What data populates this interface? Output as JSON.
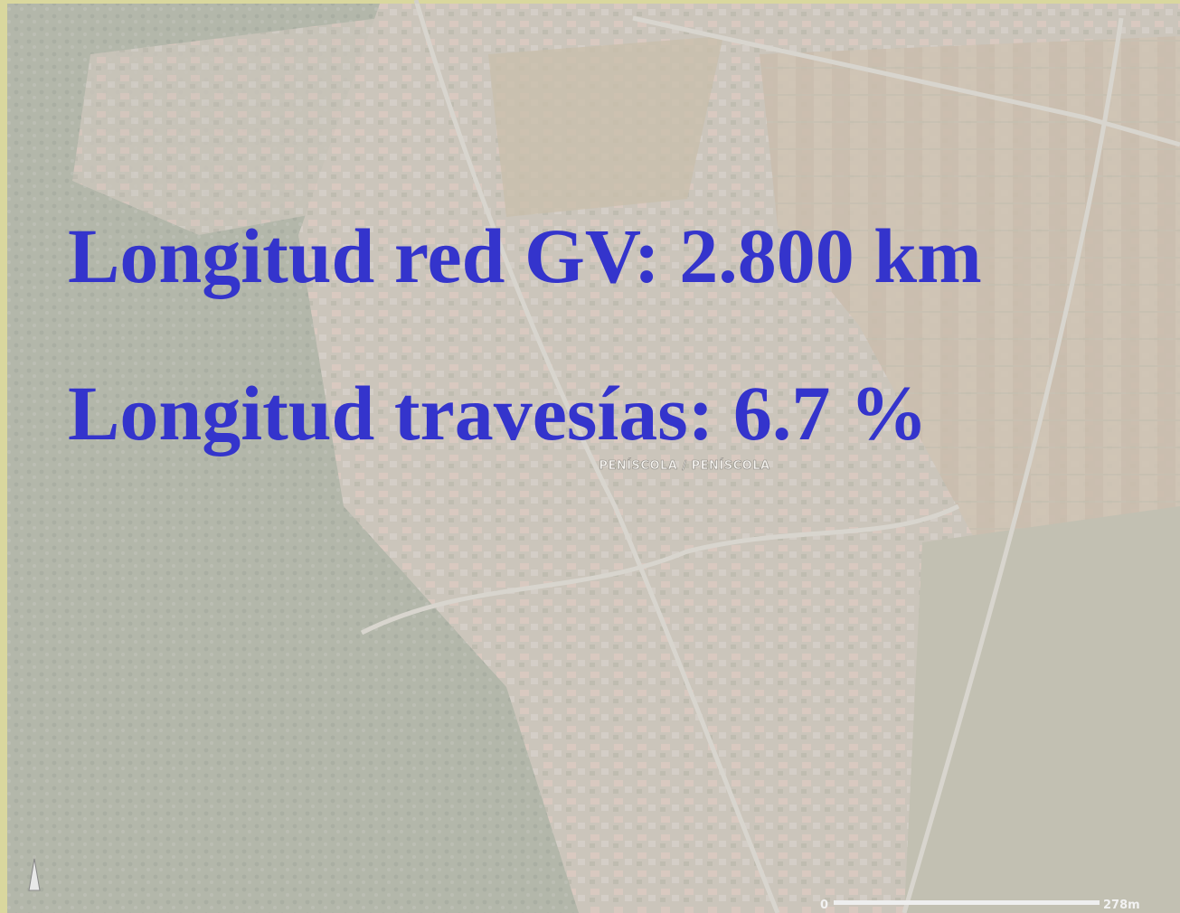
{
  "slide": {
    "lines": [
      "Longitud red GV: 2.800 km",
      "Longitud travesías: 6.7 %"
    ]
  },
  "map": {
    "place_label": "PENÍSCOLA / PENÍSCOLA",
    "scale_start": "0",
    "scale_end": "278m"
  }
}
